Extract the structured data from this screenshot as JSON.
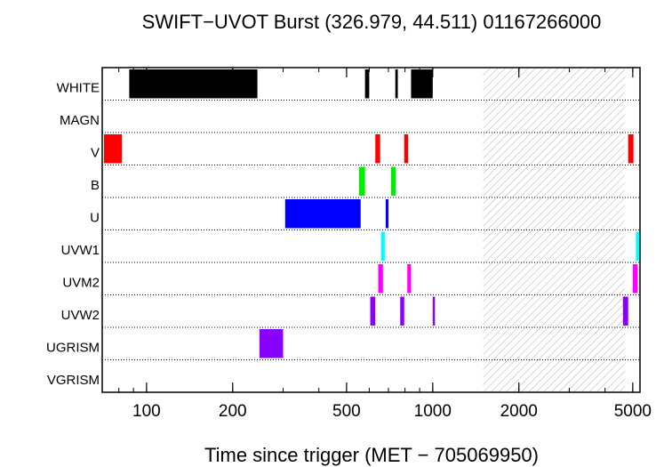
{
  "chart_data": {
    "type": "timeline",
    "title": "SWIFT−UVOT Burst (326.979, 44.511) 01167266000",
    "xlabel": "Time since trigger (MET − 705069950)",
    "ylabel": "",
    "xscale": "log",
    "xlim": [
      70,
      5300
    ],
    "major_ticks": [
      100,
      200,
      500,
      1000,
      2000,
      5000
    ],
    "tick_labels": [
      "100",
      "200",
      "500",
      "1000",
      "2000",
      "5000"
    ],
    "rows": [
      "WHITE",
      "MAGN",
      "V",
      "B",
      "U",
      "UVW1",
      "UVM2",
      "UVW2",
      "UGRISM",
      "VGRISM"
    ],
    "shaded_region": [
      1500,
      4700
    ],
    "grid": "dotted row separators",
    "legend": "none",
    "colors": {
      "WHITE": "#000000",
      "MAGN": "#000000",
      "V": "#ff0000",
      "B": "#00ee00",
      "U": "#0000ff",
      "UVW1": "#00ffff",
      "UVM2": "#ff00ff",
      "UVW2": "#8800ff",
      "UGRISM": "#8800ff",
      "VGRISM": "#000000"
    },
    "series": [
      {
        "row": "WHITE",
        "intervals": [
          [
            87,
            244
          ],
          [
            580,
            600
          ],
          [
            740,
            755
          ],
          [
            840,
            1000
          ]
        ]
      },
      {
        "row": "MAGN",
        "intervals": []
      },
      {
        "row": "V",
        "intervals": [
          [
            71,
            82
          ],
          [
            630,
            655
          ],
          [
            795,
            820
          ],
          [
            4820,
            5030
          ]
        ]
      },
      {
        "row": "B",
        "intervals": [
          [
            553,
            580
          ],
          [
            715,
            742
          ]
        ]
      },
      {
        "row": "U",
        "intervals": [
          [
            305,
            560
          ],
          [
            685,
            700
          ]
        ]
      },
      {
        "row": "UVW1",
        "intervals": [
          [
            660,
            680
          ],
          [
            5130,
            5290
          ]
        ]
      },
      {
        "row": "UVM2",
        "intervals": [
          [
            645,
            670
          ],
          [
            815,
            840
          ],
          [
            5000,
            5200
          ]
        ]
      },
      {
        "row": "UVW2",
        "intervals": [
          [
            605,
            630
          ],
          [
            770,
            795
          ],
          [
            1000,
            1015
          ],
          [
            4620,
            4820
          ]
        ]
      },
      {
        "row": "UGRISM",
        "intervals": [
          [
            248,
            300
          ]
        ]
      },
      {
        "row": "VGRISM",
        "intervals": []
      }
    ]
  }
}
